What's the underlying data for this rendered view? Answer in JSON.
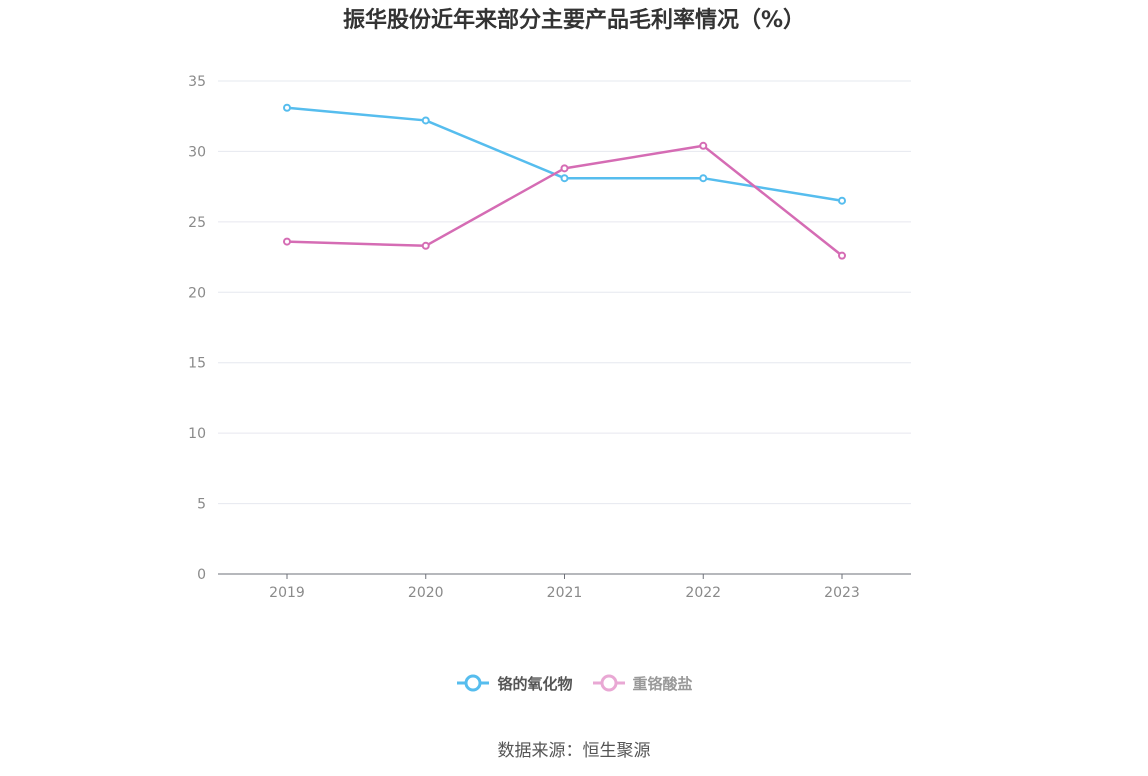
{
  "chart_data": {
    "type": "line",
    "title": "振华股份近年来部分主要产品毛利率情况（%）",
    "categories": [
      "2019",
      "2020",
      "2021",
      "2022",
      "2023"
    ],
    "series": [
      {
        "name": "铬的氧化物",
        "values": [
          33.1,
          32.2,
          28.1,
          28.1,
          26.5
        ],
        "color": "#56bdee"
      },
      {
        "name": "重铬酸盐",
        "values": [
          23.6,
          23.3,
          28.8,
          30.4,
          22.6
        ],
        "color": "#d56cb4"
      }
    ],
    "ylim": [
      0,
      35
    ],
    "yticks": [
      0,
      5,
      10,
      15,
      20,
      25,
      30,
      35
    ],
    "grid": true,
    "legend": "bottom-center",
    "legend_text_colors": [
      "#555555",
      "#999999"
    ]
  },
  "source": "数据来源：恒生聚源"
}
